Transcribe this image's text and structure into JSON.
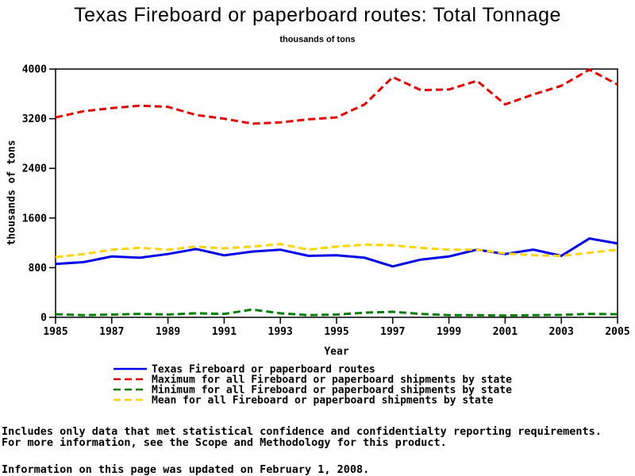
{
  "page": {
    "title": "Texas Fireboard or paperboard routes: Total Tonnage",
    "subtitle": "thousands of tons",
    "footnotes": [
      "Includes only data that met statistical confidence and confidentialty reporting requirements.",
      "For more information, see the Scope and Methodology for this product.",
      "Information on this page was updated on February 1, 2008."
    ]
  },
  "colors": {
    "background": "#ffffff",
    "axis": "#000000",
    "texas_line": "#0000e8",
    "maximum_line": "#e60000",
    "minimum_line": "#008000",
    "mean_line": "#ffd300"
  },
  "chart_data": {
    "type": "line",
    "title": "Texas Fireboard or paperboard routes: Total Tonnage",
    "subtitle": "thousands of tons",
    "xlabel": "Year",
    "ylabel": "thousands of tons",
    "grid": false,
    "legend_position": "bottom-left",
    "ylim": [
      0,
      4000
    ],
    "y_ticks": [
      0,
      800,
      1600,
      2400,
      3200,
      4000
    ],
    "x_tick_labels": [
      1985,
      1987,
      1989,
      1991,
      1993,
      1995,
      1997,
      1999,
      2001,
      2003,
      2005
    ],
    "x": [
      1985,
      1986,
      1987,
      1988,
      1989,
      1990,
      1991,
      1992,
      1993,
      1994,
      1995,
      1996,
      1997,
      1998,
      1999,
      2000,
      2001,
      2002,
      2003,
      2004,
      2005
    ],
    "series": [
      {
        "key": "texas",
        "name": "Texas Fireboard or paperboard routes",
        "color": "#0000e8",
        "dash": "solid",
        "values": [
          860,
          890,
          980,
          960,
          1020,
          1100,
          1000,
          1060,
          1090,
          990,
          1000,
          960,
          820,
          930,
          980,
          1090,
          1020,
          1090,
          990,
          1270,
          1190
        ]
      },
      {
        "key": "maximum",
        "name": "Maximum for all Fireboard or paperboard shipments by state",
        "color": "#e60000",
        "dash": "dashed",
        "values": [
          3220,
          3320,
          3370,
          3410,
          3390,
          3260,
          3200,
          3120,
          3140,
          3190,
          3220,
          3430,
          3870,
          3660,
          3670,
          3810,
          3430,
          3590,
          3730,
          3990,
          3750
        ]
      },
      {
        "key": "minimum",
        "name": "Minimum for all Fireboard or paperboard shipments by state",
        "color": "#008000",
        "dash": "dashed",
        "values": [
          50,
          35,
          45,
          55,
          45,
          65,
          55,
          125,
          65,
          35,
          45,
          75,
          90,
          55,
          35,
          35,
          30,
          35,
          40,
          55,
          50
        ]
      },
      {
        "key": "mean",
        "name": "Mean for all Fireboard or paperboard shipments by state",
        "color": "#ffd300",
        "dash": "dashed",
        "values": [
          970,
          1020,
          1090,
          1120,
          1090,
          1140,
          1110,
          1140,
          1180,
          1090,
          1140,
          1170,
          1160,
          1120,
          1090,
          1090,
          1030,
          1000,
          990,
          1040,
          1090
        ]
      }
    ]
  }
}
